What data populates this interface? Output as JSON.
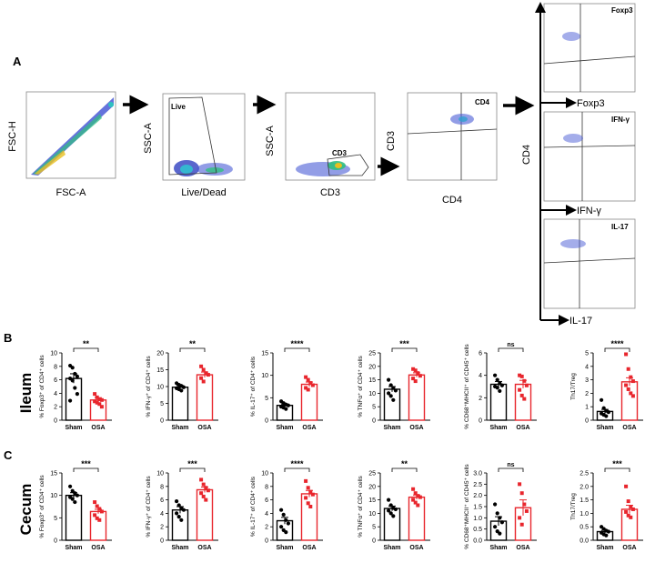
{
  "panel_labels": {
    "A": "A",
    "B": "B",
    "C": "C"
  },
  "row_labels": {
    "ileum": "Ileum",
    "cecum": "Cecum"
  },
  "flow": {
    "plot1": {
      "ylabel": "FSC-H",
      "xlabel": "FSC-A"
    },
    "plot2": {
      "ylabel": "SSC-A",
      "xlabel": "Live/Dead",
      "gate": "Live"
    },
    "plot3": {
      "ylabel": "SSC-A",
      "xlabel": "CD3",
      "gate": "CD3"
    },
    "plot4": {
      "ylabel": "CD3",
      "xlabel": "CD4",
      "gate": "CD4"
    },
    "stack_ylabel": "CD4",
    "stack": [
      {
        "gate": "Foxp3",
        "xlabel": "Foxp3"
      },
      {
        "gate": "IFN-γ",
        "xlabel": "IFN-γ"
      },
      {
        "gate": "IL-17",
        "xlabel": "IL-17"
      }
    ]
  },
  "colors": {
    "sham": "#000000",
    "osa": "#e8262d",
    "density": "#3a3ad0",
    "arrow": "#000000"
  },
  "chart_data": [
    {
      "id": "b1",
      "row": "ileum",
      "type": "bar",
      "categories": [
        "Sham",
        "OSA"
      ],
      "ylabel": "% Foxp3⁺ of CD4⁺ cells",
      "ylim": [
        0,
        10
      ],
      "yticks": [
        0,
        2,
        4,
        6,
        8,
        10
      ],
      "values": [
        6.2,
        3.0
      ],
      "errors": [
        0.7,
        0.35
      ],
      "significance": "**",
      "points": [
        [
          8.1,
          7.8,
          6.9,
          6.5,
          6.2,
          5.9,
          4.8,
          3.9,
          2.9
        ],
        [
          3.9,
          3.4,
          3.1,
          3.0,
          2.8,
          2.6,
          2.4,
          2.0
        ]
      ]
    },
    {
      "id": "b2",
      "row": "ileum",
      "type": "bar",
      "categories": [
        "Sham",
        "OSA"
      ],
      "ylabel": "% IFN-γ⁺ of CD4⁺ cells",
      "ylim": [
        0,
        20
      ],
      "yticks": [
        0,
        5,
        10,
        15,
        20
      ],
      "values": [
        9.8,
        13.5
      ],
      "errors": [
        0.5,
        0.8
      ],
      "significance": "**",
      "points": [
        [
          11.0,
          10.5,
          10.2,
          9.8,
          9.5,
          9.2,
          8.8
        ],
        [
          16.0,
          15.0,
          14.0,
          13.5,
          12.5,
          11.5
        ]
      ]
    },
    {
      "id": "b3",
      "row": "ileum",
      "type": "bar",
      "categories": [
        "Sham",
        "OSA"
      ],
      "ylabel": "% IL-17⁺ of CD4⁺ cells",
      "ylim": [
        0,
        15
      ],
      "yticks": [
        0,
        5,
        10,
        15
      ],
      "values": [
        3.3,
        8.0
      ],
      "errors": [
        0.3,
        0.5
      ],
      "significance": "****",
      "points": [
        [
          4.2,
          3.8,
          3.5,
          3.3,
          3.0,
          2.8,
          2.5
        ],
        [
          9.6,
          9.0,
          8.3,
          7.8,
          7.2,
          6.8
        ]
      ]
    },
    {
      "id": "b4",
      "row": "ileum",
      "type": "bar",
      "categories": [
        "Sham",
        "OSA"
      ],
      "ylabel": "% TNFα⁺ of CD4⁺ cells",
      "ylim": [
        0,
        25
      ],
      "yticks": [
        0,
        5,
        10,
        15,
        20,
        25
      ],
      "values": [
        11.5,
        16.8
      ],
      "errors": [
        1.0,
        0.8
      ],
      "significance": "***",
      "points": [
        [
          15.0,
          13.0,
          12.0,
          11.0,
          10.0,
          9.0,
          7.5
        ],
        [
          19.0,
          18.5,
          17.5,
          16.5,
          15.5,
          14.5
        ]
      ]
    },
    {
      "id": "b5",
      "row": "ileum",
      "type": "bar",
      "categories": [
        "Sham",
        "OSA"
      ],
      "ylabel": "% CD68⁺MHCII⁺ of CD45⁺ cells",
      "ylim": [
        0,
        6
      ],
      "yticks": [
        0,
        2,
        4,
        6
      ],
      "values": [
        3.2,
        3.2
      ],
      "errors": [
        0.25,
        0.35
      ],
      "significance": "ns",
      "points": [
        [
          4.0,
          3.6,
          3.3,
          3.1,
          3.0,
          2.9,
          2.6
        ],
        [
          4.0,
          3.9,
          3.5,
          3.1,
          2.7,
          2.2,
          1.9
        ]
      ]
    },
    {
      "id": "b6",
      "row": "ileum",
      "type": "bar",
      "categories": [
        "Sham",
        "OSA"
      ],
      "ylabel": "Th17/Treg",
      "ylim": [
        0,
        5
      ],
      "yticks": [
        0,
        1,
        2,
        3,
        4,
        5
      ],
      "values": [
        0.65,
        2.85
      ],
      "errors": [
        0.15,
        0.3
      ],
      "significance": "****",
      "points": [
        [
          1.5,
          0.9,
          0.7,
          0.6,
          0.5,
          0.4,
          0.3
        ],
        [
          4.9,
          3.8,
          3.2,
          2.9,
          2.6,
          2.3,
          2.0,
          1.8
        ]
      ]
    },
    {
      "id": "c1",
      "row": "cecum",
      "type": "bar",
      "categories": [
        "Sham",
        "OSA"
      ],
      "ylabel": "% Foxp3⁺ of CD4⁺ cells",
      "ylim": [
        0,
        15
      ],
      "yticks": [
        0,
        5,
        10,
        15
      ],
      "values": [
        10.0,
        6.4
      ],
      "errors": [
        0.6,
        0.5
      ],
      "significance": "***",
      "points": [
        [
          12.0,
          11.0,
          10.5,
          10.0,
          9.6,
          9.2,
          8.5
        ],
        [
          8.5,
          7.6,
          7.0,
          6.4,
          5.6,
          4.9,
          4.5
        ]
      ]
    },
    {
      "id": "c2",
      "row": "cecum",
      "type": "bar",
      "categories": [
        "Sham",
        "OSA"
      ],
      "ylabel": "% IFN-γ⁺ of CD4⁺ cells",
      "ylim": [
        0,
        10
      ],
      "yticks": [
        0,
        2,
        4,
        6,
        8,
        10
      ],
      "values": [
        4.5,
        7.5
      ],
      "errors": [
        0.5,
        0.4
      ],
      "significance": "***",
      "points": [
        [
          5.8,
          5.2,
          4.8,
          4.5,
          4.0,
          3.5,
          3.0
        ],
        [
          9.0,
          8.3,
          7.8,
          7.4,
          7.0,
          6.5,
          6.0
        ]
      ]
    },
    {
      "id": "c3",
      "row": "cecum",
      "type": "bar",
      "categories": [
        "Sham",
        "OSA"
      ],
      "ylabel": "% IL-17⁺ of CD4⁺ cells",
      "ylim": [
        0,
        10
      ],
      "yticks": [
        0,
        2,
        4,
        6,
        8,
        10
      ],
      "values": [
        2.9,
        6.9
      ],
      "errors": [
        0.5,
        0.5
      ],
      "significance": "****",
      "points": [
        [
          4.5,
          3.8,
          3.0,
          2.5,
          2.0,
          1.5,
          1.2
        ],
        [
          8.8,
          7.8,
          7.2,
          6.8,
          6.3,
          5.5,
          5.0
        ]
      ]
    },
    {
      "id": "c4",
      "row": "cecum",
      "type": "bar",
      "categories": [
        "Sham",
        "OSA"
      ],
      "ylabel": "% TNFα⁺ of CD4⁺ cells",
      "ylim": [
        0,
        25
      ],
      "yticks": [
        0,
        5,
        10,
        15,
        20,
        25
      ],
      "values": [
        11.8,
        16.0
      ],
      "errors": [
        0.9,
        0.8
      ],
      "significance": "**",
      "points": [
        [
          15.0,
          13.0,
          12.0,
          11.5,
          11.0,
          10.0,
          9.0
        ],
        [
          19.0,
          17.5,
          16.5,
          16.0,
          15.0,
          14.0,
          13.0
        ]
      ]
    },
    {
      "id": "c5",
      "row": "cecum",
      "type": "bar",
      "categories": [
        "Sham",
        "OSA"
      ],
      "ylabel": "% CD68⁺MHCII⁺ of CD45⁺ cells",
      "ylim": [
        0,
        3
      ],
      "yticks": [
        0.0,
        0.5,
        1.0,
        1.5,
        2.0,
        2.5,
        3.0
      ],
      "values": [
        0.85,
        1.45
      ],
      "errors": [
        0.2,
        0.35
      ],
      "significance": "ns",
      "points": [
        [
          1.6,
          1.2,
          1.0,
          0.8,
          0.6,
          0.4,
          0.3
        ],
        [
          2.5,
          2.1,
          1.6,
          1.3,
          1.0,
          0.7
        ]
      ]
    },
    {
      "id": "c6",
      "row": "cecum",
      "type": "bar",
      "categories": [
        "Sham",
        "OSA"
      ],
      "ylabel": "Th17/Treg",
      "ylim": [
        0,
        2.5
      ],
      "yticks": [
        0.0,
        0.5,
        1.0,
        1.5,
        2.0,
        2.5
      ],
      "values": [
        0.32,
        1.15
      ],
      "errors": [
        0.05,
        0.15
      ],
      "significance": "***",
      "points": [
        [
          0.5,
          0.42,
          0.36,
          0.32,
          0.28,
          0.22,
          0.18
        ],
        [
          2.0,
          1.45,
          1.25,
          1.15,
          1.05,
          0.92,
          0.85
        ]
      ]
    }
  ]
}
